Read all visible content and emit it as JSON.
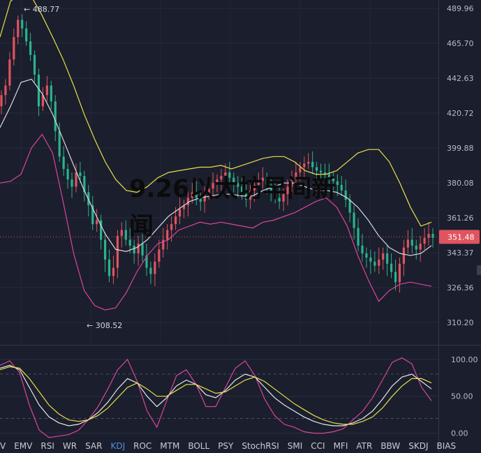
{
  "overlay_title": "9.26以太坊早间新闻",
  "price_axis_ticks": [
    "489.96",
    "465.70",
    "442.63",
    "420.72",
    "399.88",
    "380.08",
    "361.26",
    "343.37",
    "326.36",
    "310.20"
  ],
  "osc_axis_ticks": [
    "100.00",
    "50.00",
    "0.00"
  ],
  "current_price": "351.48",
  "high_marker": "488.77",
  "low_marker": "308.52",
  "indicator_tabs": [
    "V",
    "EMV",
    "RSI",
    "WR",
    "SAR",
    "KDJ",
    "ROC",
    "MTM",
    "BOLL",
    "PSY",
    "StochRSI",
    "SMI",
    "CCI",
    "MFI",
    "ATR",
    "BBW",
    "SKDJ",
    "BIAS"
  ],
  "active_tab": "KDJ",
  "colors": {
    "background": "#1b1e2d",
    "up": "#e0545f",
    "down": "#2bb38c",
    "boll_upper": "#e8e04a",
    "boll_mid": "#d7d9e0",
    "boll_lower": "#d9459a",
    "price_tag": "#e0545f"
  },
  "chart_data": {
    "type": "candlestick",
    "price_axis": {
      "min": 303,
      "max": 493,
      "ticks": [
        489.96,
        465.7,
        442.63,
        420.72,
        399.88,
        380.08,
        361.26,
        343.37,
        326.36,
        310.2
      ]
    },
    "candle_closes": [
      432,
      438,
      455,
      470,
      482,
      476,
      467,
      458,
      445,
      425,
      432,
      438,
      428,
      410,
      395,
      388,
      382,
      378,
      386,
      384,
      375,
      368,
      358,
      360,
      350,
      340,
      332,
      336,
      352,
      355,
      350,
      347,
      343,
      348,
      342,
      336,
      333,
      339,
      345,
      350,
      355,
      358,
      362,
      366,
      368,
      372,
      375,
      372,
      370,
      374,
      377,
      380,
      382,
      384,
      386,
      383,
      380,
      378,
      374,
      371,
      376,
      379,
      381,
      383,
      379,
      376,
      372,
      370,
      374,
      378,
      382,
      386,
      389,
      391,
      392,
      389,
      387,
      386,
      385,
      383,
      381,
      379,
      376,
      371,
      364,
      356,
      347,
      343,
      341,
      339,
      337,
      340,
      343,
      338,
      334,
      329,
      338,
      346,
      350,
      347,
      345,
      348,
      351,
      353,
      351
    ],
    "boll_upper": [
      470,
      495,
      500,
      498,
      485,
      470,
      455,
      438,
      420,
      405,
      392,
      382,
      376,
      375,
      378,
      383,
      386,
      387,
      388,
      389,
      389,
      390,
      388,
      390,
      392,
      394,
      395,
      395,
      392,
      387,
      385,
      385,
      387,
      392,
      397,
      399,
      399,
      392,
      380,
      367,
      357,
      359
    ],
    "boll_mid": [
      412,
      425,
      440,
      442,
      433,
      420,
      405,
      390,
      376,
      364,
      353,
      345,
      344,
      346,
      350,
      356,
      362,
      366,
      370,
      372,
      373,
      374,
      374,
      373,
      373,
      376,
      378,
      380,
      380,
      378,
      376,
      376,
      375,
      372,
      367,
      360,
      352,
      346,
      343,
      342,
      343,
      347
    ],
    "boll_lower": [
      380,
      381,
      385,
      400,
      408,
      397,
      370,
      343,
      325,
      318,
      316,
      317,
      324,
      334,
      342,
      348,
      350,
      355,
      357,
      359,
      358,
      359,
      358,
      357,
      356,
      359,
      360,
      362,
      364,
      367,
      370,
      372,
      367,
      357,
      342,
      330,
      320,
      325,
      328,
      329,
      328,
      327
    ],
    "osc_axis": {
      "min": -7,
      "max": 115,
      "ticks": [
        100,
        50,
        0
      ]
    },
    "osc_K": [
      88,
      92,
      86,
      62,
      38,
      22,
      14,
      10,
      12,
      18,
      28,
      42,
      60,
      74,
      68,
      50,
      36,
      48,
      64,
      72,
      66,
      52,
      48,
      58,
      72,
      80,
      76,
      62,
      48,
      38,
      30,
      22,
      16,
      12,
      10,
      10,
      14,
      20,
      30,
      46,
      64,
      76,
      80,
      70,
      60
    ],
    "osc_D": [
      86,
      90,
      88,
      74,
      56,
      38,
      26,
      18,
      16,
      18,
      24,
      34,
      48,
      62,
      68,
      60,
      50,
      50,
      58,
      66,
      66,
      60,
      54,
      56,
      64,
      72,
      76,
      70,
      60,
      50,
      40,
      32,
      24,
      18,
      14,
      12,
      12,
      16,
      22,
      34,
      50,
      64,
      74,
      74,
      68
    ],
    "osc_J": [
      92,
      98,
      82,
      38,
      4,
      -6,
      -4,
      -2,
      4,
      18,
      36,
      60,
      86,
      100,
      70,
      30,
      8,
      44,
      78,
      86,
      66,
      36,
      36,
      62,
      88,
      98,
      78,
      46,
      24,
      12,
      8,
      2,
      0,
      0,
      2,
      6,
      18,
      30,
      48,
      72,
      96,
      102,
      94,
      62,
      44
    ]
  }
}
